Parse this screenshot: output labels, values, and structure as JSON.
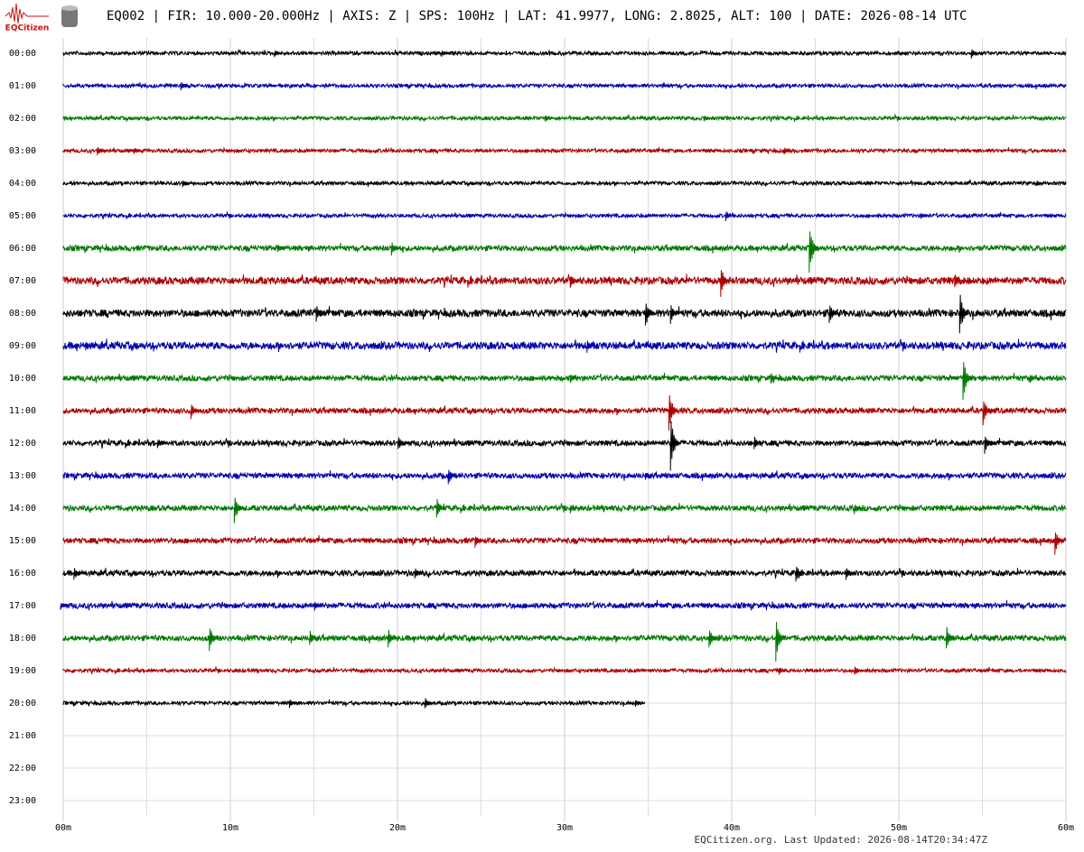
{
  "chart_data": {
    "type": "helicorder",
    "logo": "EQCitizen",
    "title": "EQ002 | FIR: 10.000-20.000Hz | AXIS: Z | SPS: 100Hz | LAT: 41.9977, LONG: 2.8025, ALT: 100 | DATE: 2026-08-14 UTC",
    "footer": "EQCitizen.org. Last Updated: 2026-08-14T20:34:47Z",
    "categories": [
      "00:00",
      "01:00",
      "02:00",
      "03:00",
      "04:00",
      "05:00",
      "06:00",
      "07:00",
      "08:00",
      "09:00",
      "10:00",
      "11:00",
      "12:00",
      "13:00",
      "14:00",
      "15:00",
      "16:00",
      "17:00",
      "18:00",
      "19:00",
      "20:00",
      "21:00",
      "22:00",
      "23:00"
    ],
    "colors": [
      "#000000",
      "#0000aa",
      "#007700",
      "#aa0000"
    ],
    "xlim": [
      0,
      60
    ],
    "xticks": [
      {
        "value": 0,
        "label": "00m"
      },
      {
        "value": 10,
        "label": "10m"
      },
      {
        "value": 20,
        "label": "20m"
      },
      {
        "value": 30,
        "label": "30m"
      },
      {
        "value": 40,
        "label": "40m"
      },
      {
        "value": 50,
        "label": "50m"
      },
      {
        "value": 60,
        "label": "60m"
      }
    ],
    "grid_minutes": [
      5,
      15,
      25,
      35,
      45,
      55
    ],
    "grid": true,
    "traces": [
      {
        "end": 60,
        "noise": 2,
        "events": [
          [
            12.8,
            5
          ],
          [
            22.8,
            4
          ],
          [
            54.5,
            7
          ]
        ]
      },
      {
        "end": 60,
        "noise": 2,
        "events": [
          [
            7.2,
            6
          ],
          [
            36,
            3
          ]
        ]
      },
      {
        "end": 60,
        "noise": 2,
        "events": [
          [
            29,
            5
          ],
          [
            38.5,
            4
          ]
        ]
      },
      {
        "end": 60,
        "noise": 2,
        "events": [
          [
            2.2,
            6
          ],
          [
            4.4,
            4
          ],
          [
            43.3,
            5
          ]
        ]
      },
      {
        "end": 60,
        "noise": 2,
        "events": [
          [
            7.3,
            5
          ],
          [
            58.4,
            4
          ]
        ]
      },
      {
        "end": 60,
        "noise": 2,
        "events": [
          [
            39.8,
            6
          ],
          [
            51.5,
            4
          ]
        ]
      },
      {
        "end": 60,
        "noise": 3,
        "events": [
          [
            13,
            5
          ],
          [
            19.8,
            9
          ],
          [
            44.8,
            32
          ]
        ]
      },
      {
        "end": 60,
        "noise": 4,
        "events": [
          [
            30.5,
            8
          ],
          [
            39.5,
            20
          ],
          [
            53.5,
            10
          ]
        ]
      },
      {
        "end": 60,
        "noise": 4,
        "events": [
          [
            15.3,
            10
          ],
          [
            35,
            18
          ],
          [
            36.5,
            12
          ],
          [
            46,
            14
          ],
          [
            53.8,
            28
          ]
        ]
      },
      {
        "end": 60,
        "noise": 4,
        "events": [
          [
            1.5,
            6
          ],
          [
            31.5,
            8
          ]
        ]
      },
      {
        "end": 60,
        "noise": 3,
        "events": [
          [
            30.5,
            6
          ],
          [
            42.5,
            8
          ],
          [
            54,
            28
          ],
          [
            58,
            6
          ]
        ]
      },
      {
        "end": 60,
        "noise": 3,
        "events": [
          [
            7.8,
            10
          ],
          [
            36.4,
            28
          ],
          [
            55.2,
            18
          ]
        ]
      },
      {
        "end": 60,
        "noise": 3,
        "events": [
          [
            5.8,
            6
          ],
          [
            20.2,
            9
          ],
          [
            36.5,
            36
          ],
          [
            41.5,
            9
          ],
          [
            55.3,
            12
          ]
        ]
      },
      {
        "end": 60,
        "noise": 3,
        "events": [
          [
            23.2,
            12
          ],
          [
            35,
            5
          ]
        ]
      },
      {
        "end": 60,
        "noise": 3,
        "events": [
          [
            10.4,
            20
          ],
          [
            22.5,
            14
          ],
          [
            30.5,
            6
          ],
          [
            47.5,
            7
          ]
        ]
      },
      {
        "end": 60,
        "noise": 3,
        "events": [
          [
            24.8,
            8
          ],
          [
            59.5,
            16
          ]
        ]
      },
      {
        "end": 60,
        "noise": 3,
        "events": [
          [
            0.8,
            8
          ],
          [
            21.2,
            8
          ],
          [
            44,
            12
          ],
          [
            47,
            8
          ]
        ]
      },
      {
        "end": 60,
        "noise": 3,
        "events": [
          [
            0,
            5
          ],
          [
            15.2,
            6
          ]
        ]
      },
      {
        "end": 60,
        "noise": 3,
        "events": [
          [
            8.9,
            17
          ],
          [
            14.9,
            10
          ],
          [
            19.6,
            12
          ],
          [
            38.8,
            14
          ],
          [
            42.8,
            28
          ],
          [
            53,
            16
          ]
        ]
      },
      {
        "end": 60,
        "noise": 2,
        "events": [
          [
            43,
            5
          ],
          [
            47.5,
            6
          ]
        ]
      },
      {
        "end": 34.8,
        "noise": 2,
        "events": [
          [
            13.7,
            6
          ],
          [
            21.8,
            7
          ],
          [
            34.4,
            5
          ]
        ]
      }
    ]
  }
}
